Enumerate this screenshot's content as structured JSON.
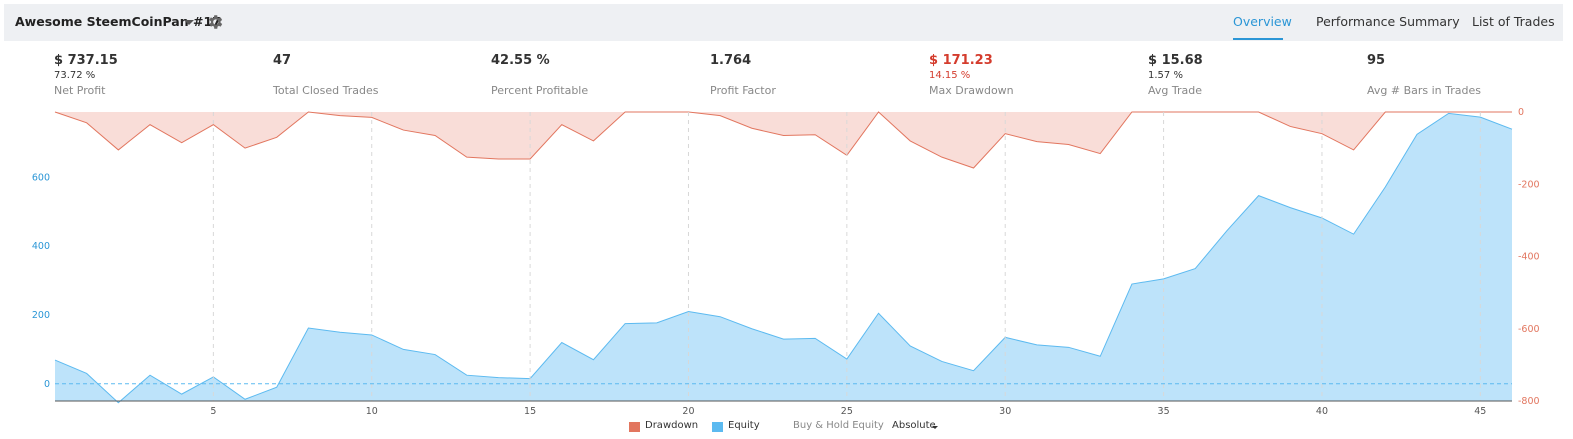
{
  "header": {
    "strategy_name": "Awesome SteemCoinPan #17",
    "tabs": [
      {
        "label": "Overview",
        "active": true
      },
      {
        "label": "Performance Summary",
        "active": false
      },
      {
        "label": "List of Trades",
        "active": false
      }
    ]
  },
  "metrics": [
    {
      "value": "$ 737.15",
      "sub": "73.72 %",
      "label": "Net Profit"
    },
    {
      "value": "47",
      "sub": "",
      "label": "Total Closed Trades"
    },
    {
      "value": "42.55 %",
      "sub": "",
      "label": "Percent Profitable"
    },
    {
      "value": "1.764",
      "sub": "",
      "label": "Profit Factor"
    },
    {
      "value": "$ 171.23",
      "sub": "14.15 %",
      "label": "Max Drawdown",
      "negative": true
    },
    {
      "value": "$ 15.68",
      "sub": "1.57 %",
      "label": "Avg Trade"
    },
    {
      "value": "95",
      "sub": "",
      "label": "Avg # Bars in Trades"
    }
  ],
  "colors": {
    "accent": "#2b96d6",
    "drawdown_line": "#e2765f",
    "drawdown_fill": "#f9ddd8",
    "equity_line": "#5cbaf0",
    "equity_fill": "#bde3fa",
    "negative_text": "#d43c2d"
  },
  "legend": {
    "drawdown": "Drawdown",
    "equity": "Equity",
    "buy_hold": "Buy & Hold Equity",
    "mode": "Absolute"
  },
  "chart_data": {
    "type": "area",
    "x": [
      0,
      1,
      2,
      3,
      4,
      5,
      6,
      7,
      8,
      9,
      10,
      11,
      12,
      13,
      14,
      15,
      16,
      17,
      18,
      19,
      20,
      21,
      22,
      23,
      24,
      25,
      26,
      27,
      28,
      29,
      30,
      31,
      32,
      33,
      34,
      35,
      36,
      37,
      38,
      39,
      40,
      41,
      42,
      43,
      44,
      45,
      46
    ],
    "x_ticks": [
      5,
      10,
      15,
      20,
      25,
      30,
      35,
      40,
      45
    ],
    "xlim": [
      0,
      46
    ],
    "series": [
      {
        "name": "Equity",
        "axis": "left",
        "values": [
          69,
          30,
          -55,
          25,
          -30,
          20,
          -45,
          -10,
          162,
          150,
          142,
          100,
          85,
          25,
          18,
          15,
          120,
          70,
          175,
          177,
          210,
          195,
          160,
          130,
          132,
          72,
          205,
          110,
          65,
          38,
          135,
          113,
          106,
          80,
          290,
          305,
          335,
          445,
          547,
          512,
          482,
          435,
          572,
          725,
          786,
          775,
          740
        ]
      },
      {
        "name": "Drawdown",
        "axis": "right",
        "values": [
          0,
          -30,
          -105,
          -35,
          -85,
          -35,
          -100,
          -70,
          0,
          -10,
          -15,
          -50,
          -65,
          -125,
          -130,
          -130,
          -35,
          -80,
          0,
          0,
          0,
          -10,
          -45,
          -65,
          -63,
          -120,
          0,
          -80,
          -125,
          -155,
          -60,
          -82,
          -90,
          -115,
          0,
          0,
          0,
          0,
          0,
          -40,
          -60,
          -105,
          0,
          0,
          0,
          0,
          0
        ]
      }
    ],
    "y_left": {
      "ticks": [
        0,
        200,
        400,
        600
      ],
      "ylim": [
        -50,
        790
      ]
    },
    "y_right": {
      "ticks": [
        0,
        -200,
        -400,
        -600,
        -800
      ],
      "ylim": [
        -800,
        0
      ]
    }
  }
}
